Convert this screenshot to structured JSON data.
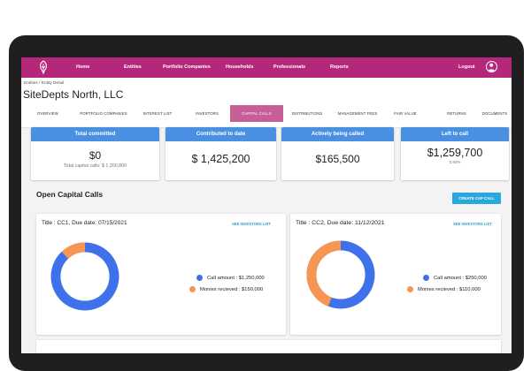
{
  "nav": {
    "items": [
      "Home",
      "Entities",
      "Portfolio Companies",
      "Households",
      "Professionals",
      "Reports"
    ],
    "active": "Entities",
    "logout": "Logout"
  },
  "breadcrumb": {
    "root": "Entities",
    "sep": "/",
    "current": "Entity Detail"
  },
  "entity": {
    "name": "SiteDepts North, LLC"
  },
  "tabs": [
    "OVERVIEW",
    "PORTFOLIO COMPANIES",
    "INTEREST LIST",
    "INVESTORS",
    "CAPITAL CALLS",
    "DISTRIBUTIONS",
    "MANAGEMENT FEES",
    "FAIR VALUE",
    "RETURNS",
    "DOCUMENTS"
  ],
  "active_tab": "CAPITAL CALLS",
  "kpis": [
    {
      "label": "Total committed",
      "value": "$0",
      "sub": "Total capital calls: $ 1,200,800"
    },
    {
      "label": "Contributed to date",
      "value": "$ 1,425,200",
      "sub": ""
    },
    {
      "label": "Actively being called",
      "value": "$165,500",
      "sub": ""
    },
    {
      "label": "Left to call",
      "value": "$1,259,700",
      "sub": "0.92%"
    }
  ],
  "section": {
    "title": "Open Capital Calls",
    "create_button": "CREATE CAP CALL"
  },
  "calls": [
    {
      "title": "Title : CC1, Due date: 07/15/2021",
      "link": "SEE INVESTORS LIST",
      "call_label": "Call amount : $1,250,000",
      "monies_label": "Monies recieved : $150,000",
      "call_amount": 1250000,
      "monies_received": 150000
    },
    {
      "title": "Title : CC2, Due date: 11/12/2021",
      "link": "SEE INVESTORS LIST",
      "call_label": "Call amount : $250,000",
      "monies_label": "Monies recieved : $110,000",
      "call_amount": 250000,
      "monies_received": 110000
    }
  ],
  "colors": {
    "brand": "#b5277a",
    "accent": "#4a90e2",
    "tab_active": "#c65f96",
    "call": "#3f72ea",
    "monies": "#f79552",
    "link": "#2b9bd7"
  }
}
